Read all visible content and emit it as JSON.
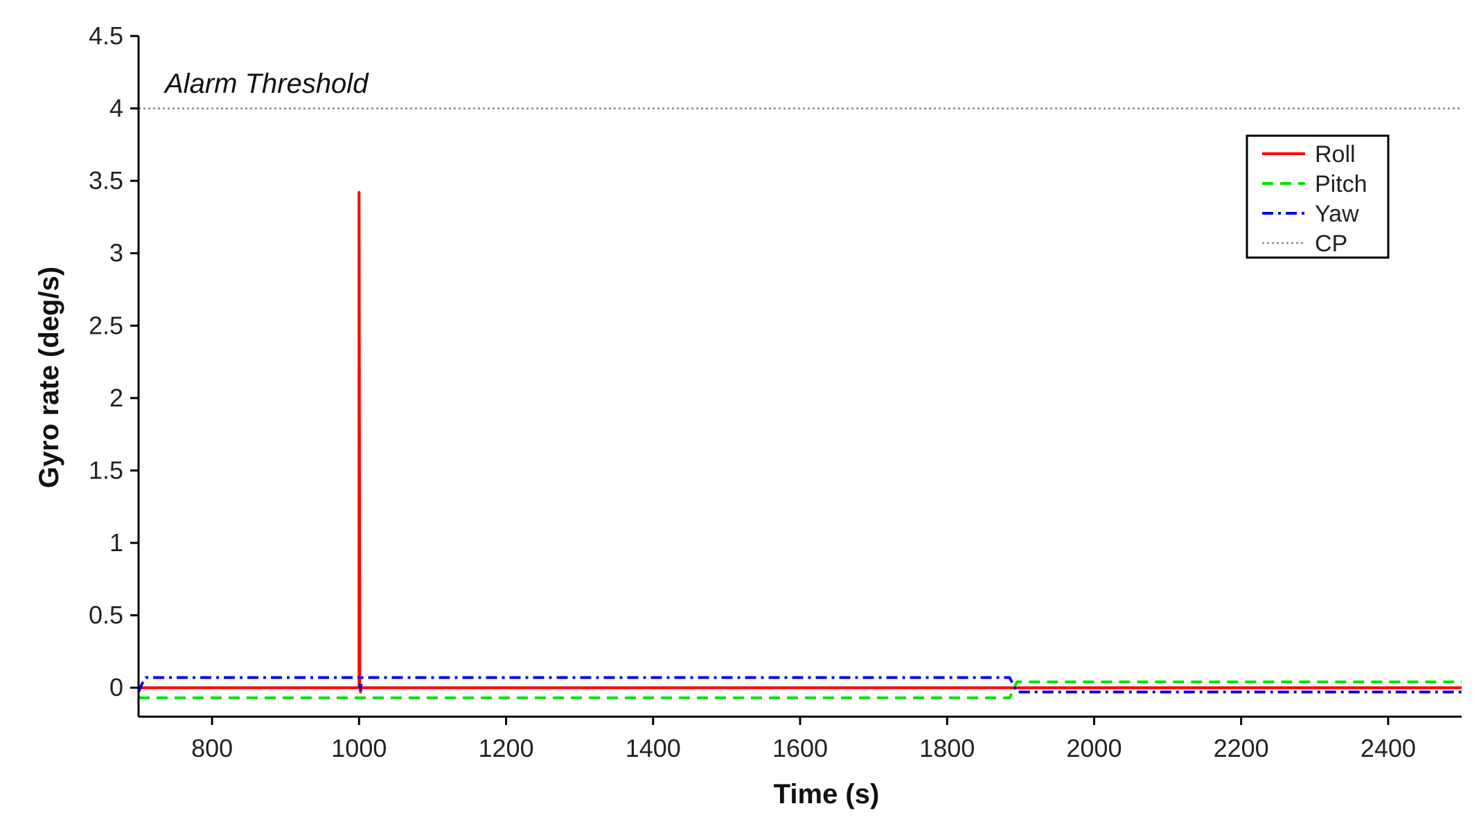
{
  "chart_data": {
    "type": "line",
    "xlabel": "Time (s)",
    "ylabel": "Gyro rate (deg/s)",
    "xlim": [
      700,
      2500
    ],
    "ylim": [
      -0.2,
      4.5
    ],
    "xticks": [
      800,
      1000,
      1200,
      1400,
      1600,
      1800,
      2000,
      2200,
      2400
    ],
    "yticks": [
      0,
      0.5,
      1,
      1.5,
      2,
      2.5,
      3,
      3.5,
      4,
      4.5
    ],
    "ytick_labels": [
      "0",
      "0.5",
      "1",
      "1.5",
      "2",
      "2.5",
      "3",
      "3.5",
      "4",
      "4.5"
    ],
    "xtick_labels": [
      "800",
      "1000",
      "1200",
      "1400",
      "1600",
      "1800",
      "2000",
      "2200",
      "2400"
    ],
    "legend_position": "top-right",
    "annotation": "Alarm Threshold",
    "series": [
      {
        "name": "Roll",
        "color": "#ff0000",
        "style": "solid",
        "x": [
          700,
          1000,
          1000,
          1001,
          1002,
          1003,
          1010,
          2500
        ],
        "y": [
          0.0,
          0.0,
          3.42,
          0.0,
          -0.03,
          0.0,
          0.0,
          0.0
        ]
      },
      {
        "name": "Pitch",
        "color": "#00e000",
        "style": "dashed",
        "x": [
          700,
          1885,
          1895,
          2500
        ],
        "y": [
          -0.07,
          -0.07,
          0.04,
          0.04
        ]
      },
      {
        "name": "Yaw",
        "color": "#0000ee",
        "style": "dashdot",
        "x": [
          700,
          705,
          710,
          1000,
          1002,
          1004,
          1885,
          1895,
          2500
        ],
        "y": [
          -0.03,
          0.03,
          0.07,
          0.07,
          -0.01,
          0.07,
          0.07,
          -0.03,
          -0.03
        ]
      },
      {
        "name": "CP",
        "color": "#888888",
        "style": "dotted",
        "x": [
          700,
          2500
        ],
        "y": [
          4.0,
          4.0
        ]
      }
    ]
  }
}
